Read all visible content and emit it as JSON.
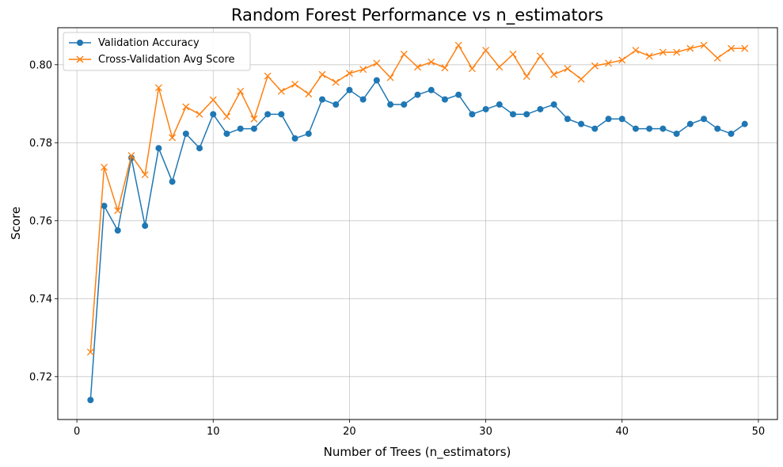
{
  "chart_data": {
    "type": "line",
    "title": "Random Forest Performance vs n_estimators",
    "xlabel": "Number of Trees (n_estimators)",
    "ylabel": "Score",
    "xlim": [
      -1.4,
      51.4
    ],
    "ylim": [
      0.709,
      0.8095
    ],
    "xticks": [
      0,
      10,
      20,
      30,
      40,
      50
    ],
    "yticks": [
      0.72,
      0.74,
      0.76,
      0.78,
      0.8
    ],
    "ytick_labels": [
      "0.72",
      "0.74",
      "0.76",
      "0.78",
      "0.80"
    ],
    "grid": true,
    "legend_position": "top-left",
    "x": [
      1,
      2,
      3,
      4,
      5,
      6,
      7,
      8,
      9,
      10,
      11,
      12,
      13,
      14,
      15,
      16,
      17,
      18,
      19,
      20,
      21,
      22,
      23,
      24,
      25,
      26,
      27,
      28,
      29,
      30,
      31,
      32,
      33,
      34,
      35,
      36,
      37,
      38,
      39,
      40,
      41,
      42,
      43,
      44,
      45,
      46,
      47,
      48,
      49
    ],
    "series": [
      {
        "name": "Validation Accuracy",
        "color": "#1f77b4",
        "marker": "circle",
        "values": [
          0.714,
          0.7638,
          0.7575,
          0.7761,
          0.7587,
          0.7786,
          0.77,
          0.7823,
          0.7786,
          0.7873,
          0.7823,
          0.7836,
          0.7836,
          0.7873,
          0.7873,
          0.7811,
          0.7823,
          0.7911,
          0.7898,
          0.7935,
          0.7911,
          0.796,
          0.7898,
          0.7898,
          0.7923,
          0.7935,
          0.7911,
          0.7923,
          0.7873,
          0.7886,
          0.7898,
          0.7873,
          0.7873,
          0.7886,
          0.7898,
          0.7861,
          0.7848,
          0.7836,
          0.7861,
          0.7861,
          0.7836,
          0.7836,
          0.7836,
          0.7823,
          0.7848,
          0.7861,
          0.7836,
          0.7823,
          0.7848
        ]
      },
      {
        "name": "Cross-Validation Avg Score",
        "color": "#ff7f0e",
        "marker": "x",
        "values": [
          0.7263,
          0.7737,
          0.7626,
          0.7767,
          0.7718,
          0.7941,
          0.7813,
          0.7892,
          0.7873,
          0.791,
          0.7867,
          0.7932,
          0.7861,
          0.7971,
          0.7932,
          0.795,
          0.7925,
          0.7975,
          0.7955,
          0.7978,
          0.7988,
          0.8004,
          0.7967,
          0.8027,
          0.7994,
          0.8007,
          0.7992,
          0.805,
          0.799,
          0.8037,
          0.7994,
          0.8027,
          0.797,
          0.8022,
          0.7975,
          0.799,
          0.7963,
          0.7997,
          0.8004,
          0.8012,
          0.8037,
          0.8022,
          0.8032,
          0.8032,
          0.8042,
          0.805,
          0.8017,
          0.8042,
          0.8042
        ]
      }
    ]
  }
}
